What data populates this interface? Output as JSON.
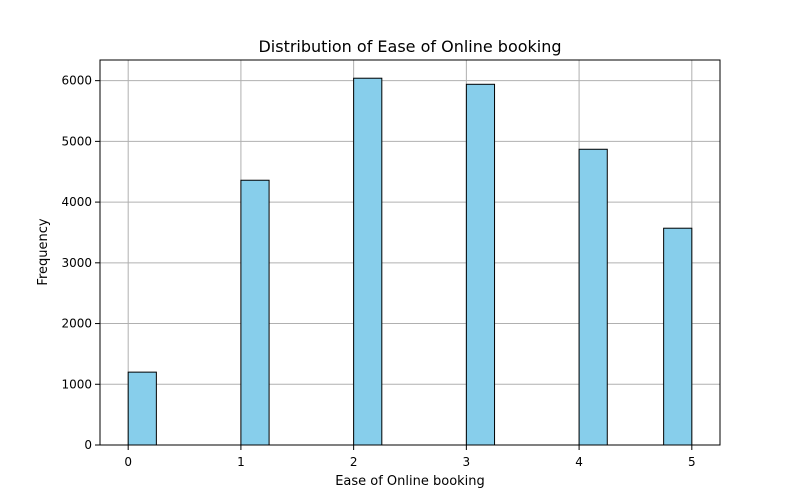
{
  "chart_data": {
    "type": "bar",
    "title": "Distribution of Ease of Online booking",
    "xlabel": "Ease of Online booking",
    "ylabel": "Frequency",
    "x_ticks": [
      0,
      1,
      2,
      3,
      4,
      5
    ],
    "y_ticks": [
      0,
      1000,
      2000,
      3000,
      4000,
      5000,
      6000
    ],
    "xlim": [
      -0.25,
      5.25
    ],
    "ylim": [
      0,
      6340
    ],
    "grid": true,
    "bar_color": "#87CEEB",
    "edge_color": "#000000",
    "bins": [
      {
        "start": 0.0,
        "end": 0.25,
        "value": 1200
      },
      {
        "start": 1.0,
        "end": 1.25,
        "value": 4360
      },
      {
        "start": 2.0,
        "end": 2.25,
        "value": 6040
      },
      {
        "start": 3.0,
        "end": 3.25,
        "value": 5940
      },
      {
        "start": 4.0,
        "end": 4.25,
        "value": 4870
      },
      {
        "start": 4.75,
        "end": 5.0,
        "value": 3570
      }
    ]
  }
}
